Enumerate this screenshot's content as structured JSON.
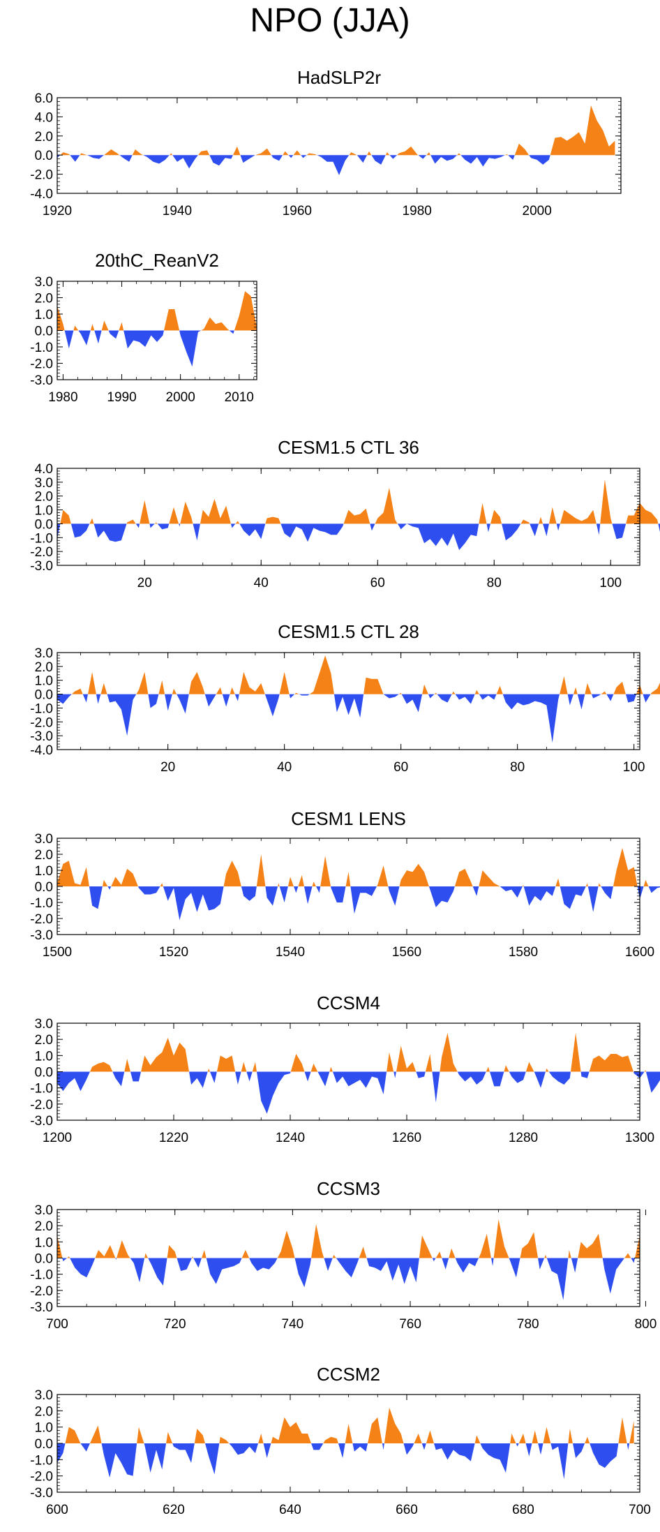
{
  "figure": {
    "title": "NPO (JJA)"
  },
  "colors": {
    "positive": "#f58217",
    "negative": "#2e4ef0",
    "axis": "#000000"
  },
  "chart_data": [
    {
      "type": "area",
      "title": "HadSLP2r",
      "xlabel": "",
      "ylabel": "",
      "xlim": [
        1920,
        2014
      ],
      "ylim": [
        -4.0,
        6.0
      ],
      "xticks": [
        1920,
        1940,
        1960,
        1980,
        2000
      ],
      "xtick_labels": [
        "1920",
        "1940",
        "1960",
        "1980",
        "2000"
      ],
      "yticks": [
        6,
        4,
        2,
        0,
        -2,
        -4
      ],
      "ytick_labels": [
        "6.0",
        "4.0",
        "2.0",
        "0.0",
        "-2.0",
        "-4.0"
      ],
      "x_start": 1920,
      "x_step": 1,
      "values": [
        -0.3,
        0.3,
        0.1,
        -0.7,
        0.2,
        0.0,
        -0.3,
        -0.4,
        0.1,
        0.6,
        0.2,
        -0.3,
        -0.7,
        0.6,
        0.1,
        -0.2,
        -0.7,
        -0.9,
        -0.5,
        0.2,
        -0.7,
        -0.3,
        -1.4,
        -0.4,
        0.4,
        0.5,
        -0.8,
        -1.1,
        -0.3,
        -0.4,
        0.9,
        -0.8,
        -0.4,
        0.0,
        0.2,
        0.7,
        -0.3,
        -0.6,
        0.4,
        -0.3,
        0.5,
        -0.3,
        0.2,
        0.1,
        -0.2,
        -0.7,
        -0.7,
        -2.1,
        -0.6,
        0.3,
        0.0,
        -0.8,
        0.4,
        -0.6,
        -1.0,
        0.3,
        -0.4,
        0.2,
        0.4,
        0.9,
        0.1,
        -0.4,
        0.3,
        -0.9,
        -0.2,
        -0.6,
        -0.4,
        0.2,
        -0.5,
        -0.9,
        -0.2,
        -1.2,
        -0.3,
        -0.4,
        -0.2,
        0.1,
        -0.5,
        1.2,
        0.6,
        -0.3,
        -0.5,
        -1.0,
        -0.5,
        1.8,
        1.9,
        1.5,
        1.9,
        2.4,
        1.2,
        5.2,
        3.6,
        2.6,
        0.9,
        1.5
      ]
    },
    {
      "type": "area",
      "title": "20thC_ReanV2",
      "xlabel": "",
      "ylabel": "",
      "xlim": [
        1979,
        2013
      ],
      "ylim": [
        -3.0,
        3.0
      ],
      "xticks": [
        1980,
        1990,
        2000,
        2010
      ],
      "xtick_labels": [
        "1980",
        "1990",
        "2000",
        "2010"
      ],
      "yticks": [
        3,
        2,
        1,
        0,
        -1,
        -2,
        -3
      ],
      "ytick_labels": [
        "3.0",
        "2.0",
        "1.0",
        "0.0",
        "-1.0",
        "-2.0",
        "-3.0"
      ],
      "x_start": 1979,
      "x_step": 1,
      "values": [
        1.5,
        0.4,
        -1.1,
        0.3,
        -0.2,
        -0.9,
        0.4,
        -0.8,
        0.6,
        -0.2,
        -0.5,
        0.5,
        -1.1,
        -0.6,
        -0.7,
        -1.0,
        -0.3,
        -0.7,
        -0.3,
        1.3,
        1.3,
        -0.3,
        -1.3,
        -2.2,
        -0.1,
        0.1,
        0.8,
        0.4,
        0.5,
        0.1,
        -0.2,
        0.9,
        2.4,
        2.1,
        0.2
      ]
    },
    {
      "type": "area",
      "title": "CESM1.5 CTL 36",
      "xlabel": "",
      "ylabel": "",
      "xlim": [
        5,
        105
      ],
      "ylim": [
        -3.0,
        4.0
      ],
      "xticks": [
        20,
        40,
        60,
        80,
        100
      ],
      "xtick_labels": [
        "20",
        "40",
        "60",
        "80",
        "100"
      ],
      "yticks": [
        4,
        3,
        2,
        1,
        0,
        -1,
        -2,
        -3
      ],
      "ytick_labels": [
        "4.0",
        "3.0",
        "2.0",
        "1.0",
        "0.0",
        "-1.0",
        "-2.0",
        "-3.0"
      ],
      "x_start": 5,
      "x_step": 1,
      "values": [
        -1.1,
        1.0,
        0.6,
        -1.0,
        -0.9,
        -0.5,
        0.4,
        -1.0,
        -0.5,
        -1.2,
        -1.3,
        -1.2,
        0.1,
        0.3,
        -0.3,
        1.7,
        -0.3,
        0.1,
        -0.4,
        -0.3,
        1.2,
        -0.2,
        1.6,
        0.5,
        -1.2,
        1.0,
        0.5,
        1.8,
        0.4,
        1.3,
        -0.3,
        0.2,
        -0.5,
        -0.9,
        -0.4,
        -1.1,
        0.4,
        0.5,
        0.4,
        -0.7,
        -1.0,
        -0.2,
        -0.4,
        -1.3,
        -0.3,
        -0.5,
        -0.6,
        -0.8,
        -0.8,
        -0.2,
        1.0,
        0.6,
        0.7,
        1.1,
        -0.5,
        0.4,
        0.8,
        2.6,
        0.3,
        -0.4,
        0.0,
        -0.2,
        -0.3,
        -1.4,
        -1.1,
        -1.6,
        -1.0,
        -1.6,
        -0.7,
        -1.9,
        -1.4,
        -0.8,
        -0.9,
        1.5,
        -0.6,
        1.0,
        0.5,
        -1.2,
        -0.9,
        -0.4,
        0.3,
        0.1,
        -0.9,
        0.5,
        -0.9,
        1.2,
        -0.5,
        1.0,
        0.7,
        0.4,
        0.2,
        0.4,
        1.0,
        -0.8,
        3.2,
        0.4,
        -1.1,
        -1.0,
        0.6,
        0.6,
        1.5,
        1.0,
        0.8,
        0.3,
        -1.6
      ]
    },
    {
      "type": "area",
      "title": "CESM1.5 CTL 28",
      "xlabel": "",
      "ylabel": "",
      "xlim": [
        1,
        101
      ],
      "ylim": [
        -4.0,
        3.0
      ],
      "xticks": [
        20,
        40,
        60,
        80,
        100
      ],
      "xtick_labels": [
        "20",
        "40",
        "60",
        "80",
        "100"
      ],
      "yticks": [
        3,
        2,
        1,
        0,
        -1,
        -2,
        -3,
        -4
      ],
      "ytick_labels": [
        "3.0",
        "2.0",
        "1.0",
        "0.0",
        "-1.0",
        "-2.0",
        "-3.0",
        "-4.0"
      ],
      "x_start": 1,
      "x_step": 1,
      "values": [
        -0.4,
        -0.7,
        -0.2,
        0.2,
        0.4,
        -0.6,
        1.6,
        -0.7,
        0.8,
        -0.6,
        -0.5,
        -1.1,
        -3.0,
        -0.4,
        0.3,
        1.6,
        -1.0,
        -0.7,
        1.0,
        -1.2,
        0.4,
        -0.4,
        -1.4,
        0.9,
        1.6,
        0.5,
        -0.9,
        -0.2,
        0.5,
        -0.9,
        0.5,
        -0.5,
        1.6,
        0.5,
        0.2,
        0.8,
        -0.4,
        -1.6,
        -0.3,
        1.6,
        -0.3,
        0.1,
        -0.1,
        -0.1,
        0.2,
        1.5,
        2.8,
        1.5,
        -1.3,
        -0.2,
        -1.5,
        -0.3,
        -1.7,
        1.2,
        1.1,
        1.1,
        0.0,
        -0.3,
        -0.2,
        0.1,
        -0.7,
        -0.4,
        -1.3,
        0.7,
        -0.3,
        0.1,
        -0.4,
        -0.6,
        0.2,
        -0.4,
        -0.2,
        -0.7,
        0.3,
        -0.4,
        -0.1,
        -0.4,
        0.6,
        -0.6,
        -1.1,
        -0.6,
        -0.8,
        -0.7,
        -0.5,
        -0.6,
        -0.8,
        -3.5,
        -0.4,
        1.3,
        -0.8,
        0.5,
        -1.1,
        0.8,
        -0.3,
        -0.1,
        0.2,
        -0.5,
        0.5,
        0.9,
        -0.6,
        -0.5,
        0.7,
        -0.6,
        0.1,
        0.4,
        1.3,
        0.9
      ]
    },
    {
      "type": "area",
      "title": "CESM1 LENS",
      "xlabel": "",
      "ylabel": "",
      "xlim": [
        1500,
        1600
      ],
      "ylim": [
        -3.0,
        3.0
      ],
      "xticks": [
        1500,
        1520,
        1540,
        1560,
        1580,
        1600
      ],
      "xtick_labels": [
        "1500",
        "1520",
        "1540",
        "1560",
        "1580",
        "1600"
      ],
      "yticks": [
        3,
        2,
        1,
        0,
        -1,
        -2,
        -3
      ],
      "ytick_labels": [
        "3.0",
        "2.0",
        "1.0",
        "0.0",
        "-1.0",
        "-2.0",
        "-3.0"
      ],
      "x_start": 1500,
      "x_step": 1,
      "values": [
        0.2,
        1.4,
        1.6,
        0.2,
        0.1,
        1.2,
        -1.2,
        -1.4,
        0.4,
        -0.2,
        0.6,
        0.1,
        1.1,
        0.8,
        -0.1,
        -0.5,
        -0.5,
        -0.4,
        0.2,
        -0.9,
        -0.1,
        -2.1,
        -0.8,
        -0.4,
        -1.6,
        -0.5,
        -1.5,
        -1.4,
        -1.1,
        0.8,
        1.6,
        0.9,
        -0.6,
        -0.9,
        -0.6,
        2.0,
        -0.7,
        -1.2,
        0.2,
        -1.0,
        0.6,
        -0.4,
        0.7,
        -1.1,
        0.3,
        -0.4,
        1.9,
        -0.1,
        -1.0,
        -1.0,
        0.9,
        -1.7,
        -0.4,
        -0.4,
        -0.6,
        0.1,
        1.3,
        -0.3,
        -1.2,
        0.4,
        1.0,
        0.9,
        1.4,
        0.9,
        -0.2,
        -1.3,
        -0.9,
        -1.0,
        -0.3,
        0.9,
        1.1,
        0.3,
        -0.6,
        1.0,
        0.6,
        0.2,
        0.0,
        -0.3,
        -0.2,
        -0.7,
        0.1,
        -1.2,
        -0.6,
        -0.9,
        -0.3,
        -0.6,
        0.5,
        -1.1,
        -1.4,
        -0.5,
        -0.6,
        0.2,
        -1.6,
        0.2,
        -0.4,
        -0.8,
        1.0,
        2.4,
        1.0,
        1.2,
        -0.8,
        0.4,
        -0.4,
        -0.1,
        0.0,
        -0.3,
        -1.0
      ]
    },
    {
      "type": "area",
      "title": "CCSM4",
      "xlabel": "",
      "ylabel": "",
      "xlim": [
        1200,
        1300
      ],
      "ylim": [
        -3.0,
        3.0
      ],
      "xticks": [
        1200,
        1220,
        1240,
        1260,
        1280,
        1300
      ],
      "xtick_labels": [
        "1200",
        "1220",
        "1240",
        "1260",
        "1280",
        "1300"
      ],
      "yticks": [
        3,
        2,
        1,
        0,
        -1,
        -2,
        -3
      ],
      "ytick_labels": [
        "3.0",
        "2.0",
        "1.0",
        "0.0",
        "-1.0",
        "-2.0",
        "-3.0"
      ],
      "x_start": 1200,
      "x_step": 1,
      "values": [
        -0.7,
        -1.2,
        -0.7,
        -0.4,
        -1.2,
        -0.5,
        0.3,
        0.5,
        0.6,
        0.4,
        -0.4,
        -0.9,
        0.8,
        -0.6,
        -0.6,
        1.0,
        0.4,
        0.9,
        1.2,
        2.1,
        1.0,
        1.8,
        1.4,
        -0.8,
        -0.4,
        -1.0,
        0.2,
        -0.7,
        1.0,
        0.8,
        1.0,
        -0.8,
        0.6,
        -0.6,
        0.6,
        -1.8,
        -2.6,
        -1.5,
        -0.7,
        -0.2,
        -0.1,
        1.1,
        0.5,
        -0.6,
        0.5,
        -0.2,
        -0.9,
        0.3,
        -0.7,
        -0.3,
        -0.9,
        -0.7,
        -0.5,
        -1.0,
        -0.3,
        -0.4,
        -1.4,
        1.2,
        -0.4,
        1.6,
        0.2,
        0.6,
        -0.4,
        -0.3,
        1.1,
        -1.9,
        0.9,
        2.4,
        0.5,
        -0.2,
        -0.6,
        -0.3,
        -0.8,
        -0.5,
        0.3,
        -0.9,
        -0.9,
        0.4,
        -0.3,
        -0.7,
        -0.5,
        0.6,
        -0.1,
        -1.0,
        0.2,
        -0.3,
        -0.6,
        -0.8,
        -0.4,
        2.4,
        -0.3,
        -0.4,
        0.8,
        1.0,
        0.7,
        1.1,
        1.1,
        0.9,
        1.0,
        -0.1,
        -0.4,
        0.1,
        -1.3,
        -0.8,
        -0.2,
        0.6,
        -0.9,
        -0.3,
        -0.5,
        -0.4,
        -0.6
      ]
    },
    {
      "type": "area",
      "title": "CCSM3",
      "xlabel": "",
      "ylabel": "",
      "xlim": [
        700,
        799
      ],
      "ylim": [
        -3.0,
        3.0
      ],
      "xticks": [
        700,
        720,
        740,
        760,
        780,
        800
      ],
      "xtick_labels": [
        "700",
        "720",
        "740",
        "760",
        "780",
        "800"
      ],
      "yticks": [
        3,
        2,
        1,
        0,
        -1,
        -2,
        -3
      ],
      "ytick_labels": [
        "3.0",
        "2.0",
        "1.0",
        "0.0",
        "-1.0",
        "-2.0",
        "-3.0"
      ],
      "x_start": 700,
      "x_step": 1,
      "values": [
        1.4,
        -0.2,
        0.1,
        -0.6,
        -1.0,
        -1.2,
        -0.4,
        0.5,
        0.1,
        0.8,
        -0.1,
        1.1,
        0.2,
        -0.3,
        -1.5,
        0.3,
        -0.4,
        -1.2,
        -1.7,
        0.8,
        0.4,
        -0.8,
        -0.7,
        0.1,
        -0.6,
        0.5,
        -1.0,
        -1.6,
        -0.7,
        -0.6,
        -0.5,
        -0.3,
        0.5,
        -0.3,
        -0.8,
        -0.6,
        -0.7,
        -0.3,
        0.4,
        1.7,
        0.6,
        -1.0,
        -1.8,
        -0.4,
        2.1,
        0.4,
        -0.8,
        0.2,
        -0.3,
        -0.8,
        -1.2,
        -0.3,
        0.7,
        -0.5,
        -0.6,
        -0.8,
        -0.2,
        -1.4,
        -0.4,
        -1.6,
        -0.5,
        -1.5,
        1.4,
        0.6,
        -0.2,
        0.4,
        -0.7,
        0.6,
        -0.3,
        -0.9,
        -0.3,
        -0.5,
        0.3,
        1.5,
        -0.5,
        2.4,
        0.7,
        -0.2,
        -1.2,
        0.6,
        0.9,
        1.6,
        -0.7,
        0.2,
        -0.8,
        -1.0,
        -2.6,
        0.5,
        -0.9,
        1.0,
        0.6,
        0.9,
        1.5,
        -0.7,
        -2.2,
        -0.7,
        -0.2,
        0.3,
        -0.3,
        1.4
      ]
    },
    {
      "type": "area",
      "title": "CCSM2",
      "xlabel": "",
      "ylabel": "",
      "xlim": [
        600,
        700
      ],
      "ylim": [
        -3.0,
        3.0
      ],
      "xticks": [
        600,
        620,
        640,
        660,
        680,
        700
      ],
      "xtick_labels": [
        "600",
        "620",
        "640",
        "660",
        "680",
        "700"
      ],
      "yticks": [
        3,
        2,
        1,
        0,
        -1,
        -2,
        -3
      ],
      "ytick_labels": [
        "3.0",
        "2.0",
        "1.0",
        "0.0",
        "-1.0",
        "-2.0",
        "-3.0"
      ],
      "x_start": 600,
      "x_step": 1,
      "values": [
        -1.2,
        -0.6,
        1.0,
        0.8,
        0.0,
        -0.5,
        0.3,
        1.1,
        -0.7,
        -2.1,
        -0.6,
        -1.2,
        -1.9,
        -2.0,
        1.0,
        -0.1,
        -1.8,
        -0.4,
        -1.6,
        0.7,
        -0.2,
        -0.4,
        -0.4,
        -1.2,
        0.9,
        0.5,
        -0.8,
        -1.9,
        0.4,
        0.2,
        -0.2,
        -0.7,
        -0.6,
        -0.2,
        -0.6,
        0.6,
        -0.9,
        0.4,
        0.2,
        1.6,
        1.0,
        1.3,
        0.6,
        0.6,
        -0.4,
        -0.4,
        0.2,
        0.4,
        0.3,
        -0.9,
        1.2,
        -0.5,
        -0.2,
        -0.5,
        1.2,
        1.6,
        -0.4,
        2.2,
        1.2,
        0.6,
        -0.7,
        -0.2,
        0.6,
        -0.4,
        0.8,
        -0.4,
        -0.3,
        -1.0,
        -0.4,
        -0.7,
        -0.8,
        -1.1,
        0.5,
        -0.3,
        -0.7,
        -0.9,
        -1.0,
        -1.8,
        0.6,
        -0.2,
        0.6,
        -0.8,
        0.8,
        -0.7,
        1.0,
        -0.4,
        -0.2,
        -2.2,
        0.9,
        -0.9,
        -0.5,
        0.4,
        -0.6,
        -1.3,
        -1.5,
        -1.1,
        -0.8,
        1.6,
        -0.4,
        1.4
      ]
    }
  ]
}
